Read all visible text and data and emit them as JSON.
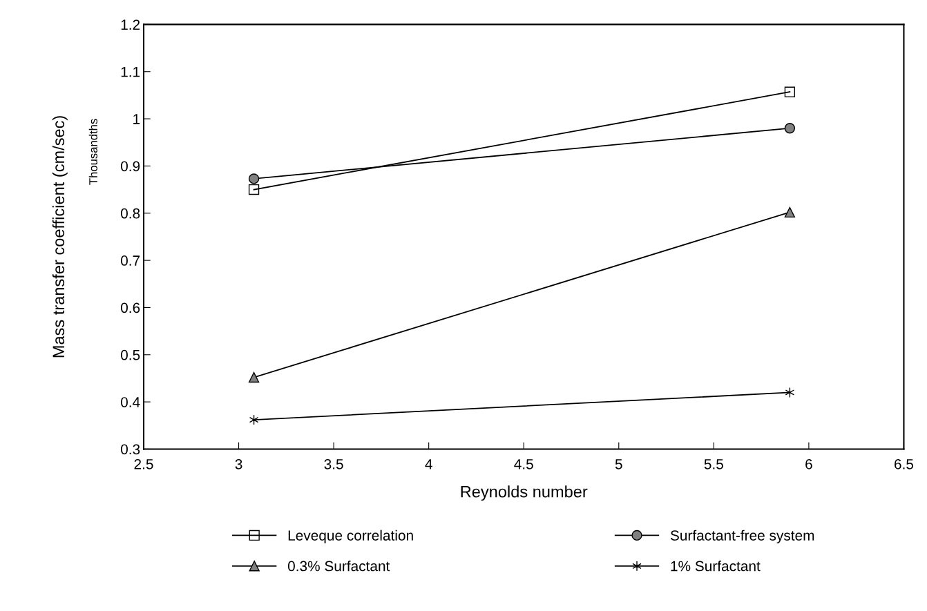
{
  "chart_data": {
    "type": "line",
    "xlabel": "Reynolds number",
    "ylabel": "Mass transfer coefficient (cm/sec)",
    "annotations": [
      "Thousandths"
    ],
    "xlim": [
      2.5,
      6.5
    ],
    "xticks": [
      2.5,
      3,
      3.5,
      4,
      4.5,
      5,
      5.5,
      6,
      6.5
    ],
    "ylim": [
      0.3,
      1.2
    ],
    "yticks": [
      0.3,
      0.4,
      0.5,
      0.6,
      0.7,
      0.8,
      0.9,
      1,
      1.1,
      1.2
    ],
    "grid": false,
    "legend": "bottom",
    "line_style": "solid",
    "x": [
      3.08,
      5.9
    ],
    "series": [
      {
        "name": "Leveque correlation",
        "color": "#000000",
        "marker": "square",
        "values": [
          0.85,
          1.057
        ]
      },
      {
        "name": "Surfactant-free system",
        "color": "#000000",
        "marker": "circle",
        "values": [
          0.873,
          0.98
        ]
      },
      {
        "name": "0.3% Surfactant",
        "color": "#000000",
        "marker": "triangle",
        "values": [
          0.452,
          0.802
        ]
      },
      {
        "name": "1% Surfactant",
        "color": "#000000",
        "marker": "cross",
        "values": [
          0.362,
          0.42
        ]
      }
    ]
  }
}
